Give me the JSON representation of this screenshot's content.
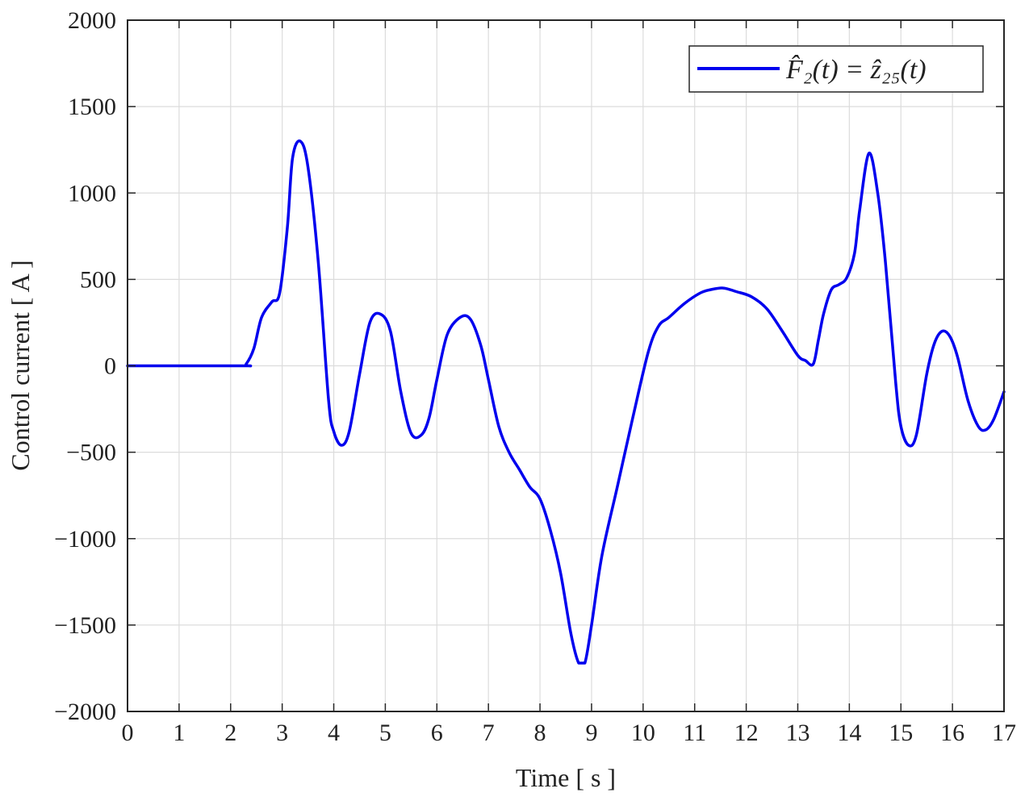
{
  "chart_data": {
    "type": "line",
    "title": "",
    "xlabel": "Time [ s ]",
    "ylabel": "Control current [ A ]",
    "xlim": [
      0,
      17
    ],
    "ylim": [
      -2000,
      2000
    ],
    "xticks": [
      0,
      1,
      2,
      3,
      4,
      5,
      6,
      7,
      8,
      9,
      10,
      11,
      12,
      13,
      14,
      15,
      16,
      17
    ],
    "yticks": [
      -2000,
      -1500,
      -1000,
      -500,
      0,
      500,
      1000,
      1500,
      2000
    ],
    "ytick_labels": [
      "−2000",
      "−1500",
      "−1000",
      "−500",
      "0",
      "500",
      "1000",
      "1500",
      "2000"
    ],
    "grid": true,
    "legend_position": "top-right",
    "series": [
      {
        "name": "F̂₂(t) = ẑ₂₅(t)",
        "color": "#0000ee",
        "x": [
          0,
          2.2,
          2.3,
          2.45,
          2.6,
          2.8,
          2.95,
          3.1,
          3.2,
          3.35,
          3.5,
          3.7,
          3.9,
          4.0,
          4.15,
          4.3,
          4.5,
          4.7,
          4.9,
          5.1,
          5.3,
          5.5,
          5.7,
          5.85,
          6.0,
          6.2,
          6.45,
          6.65,
          6.85,
          7.0,
          7.2,
          7.4,
          7.6,
          7.8,
          8.0,
          8.2,
          8.4,
          8.6,
          8.75,
          8.87,
          9.0,
          9.2,
          9.5,
          9.8,
          10.1,
          10.3,
          10.5,
          10.8,
          11.1,
          11.3,
          11.55,
          11.8,
          12.1,
          12.4,
          12.7,
          13.0,
          13.15,
          13.3,
          13.4,
          13.5,
          13.65,
          13.8,
          13.95,
          14.1,
          14.2,
          14.38,
          14.55,
          14.7,
          14.9,
          15.0,
          15.15,
          15.3,
          15.5,
          15.65,
          15.8,
          15.95,
          16.1,
          16.3,
          16.5,
          16.65,
          16.8,
          17.0
        ],
        "y": [
          0,
          0,
          10,
          100,
          280,
          370,
          420,
          800,
          1200,
          1300,
          1150,
          600,
          -200,
          -380,
          -460,
          -380,
          -50,
          250,
          300,
          200,
          -150,
          -390,
          -400,
          -300,
          -80,
          180,
          280,
          270,
          120,
          -80,
          -350,
          -500,
          -600,
          -700,
          -770,
          -950,
          -1200,
          -1550,
          -1720,
          -1720,
          -1500,
          -1100,
          -700,
          -300,
          80,
          230,
          280,
          360,
          420,
          440,
          450,
          430,
          400,
          330,
          200,
          60,
          30,
          10,
          150,
          300,
          440,
          470,
          510,
          650,
          900,
          1230,
          1000,
          600,
          -100,
          -350,
          -460,
          -400,
          -50,
          130,
          200,
          170,
          50,
          -200,
          -350,
          -370,
          -310,
          -150
        ]
      }
    ]
  }
}
